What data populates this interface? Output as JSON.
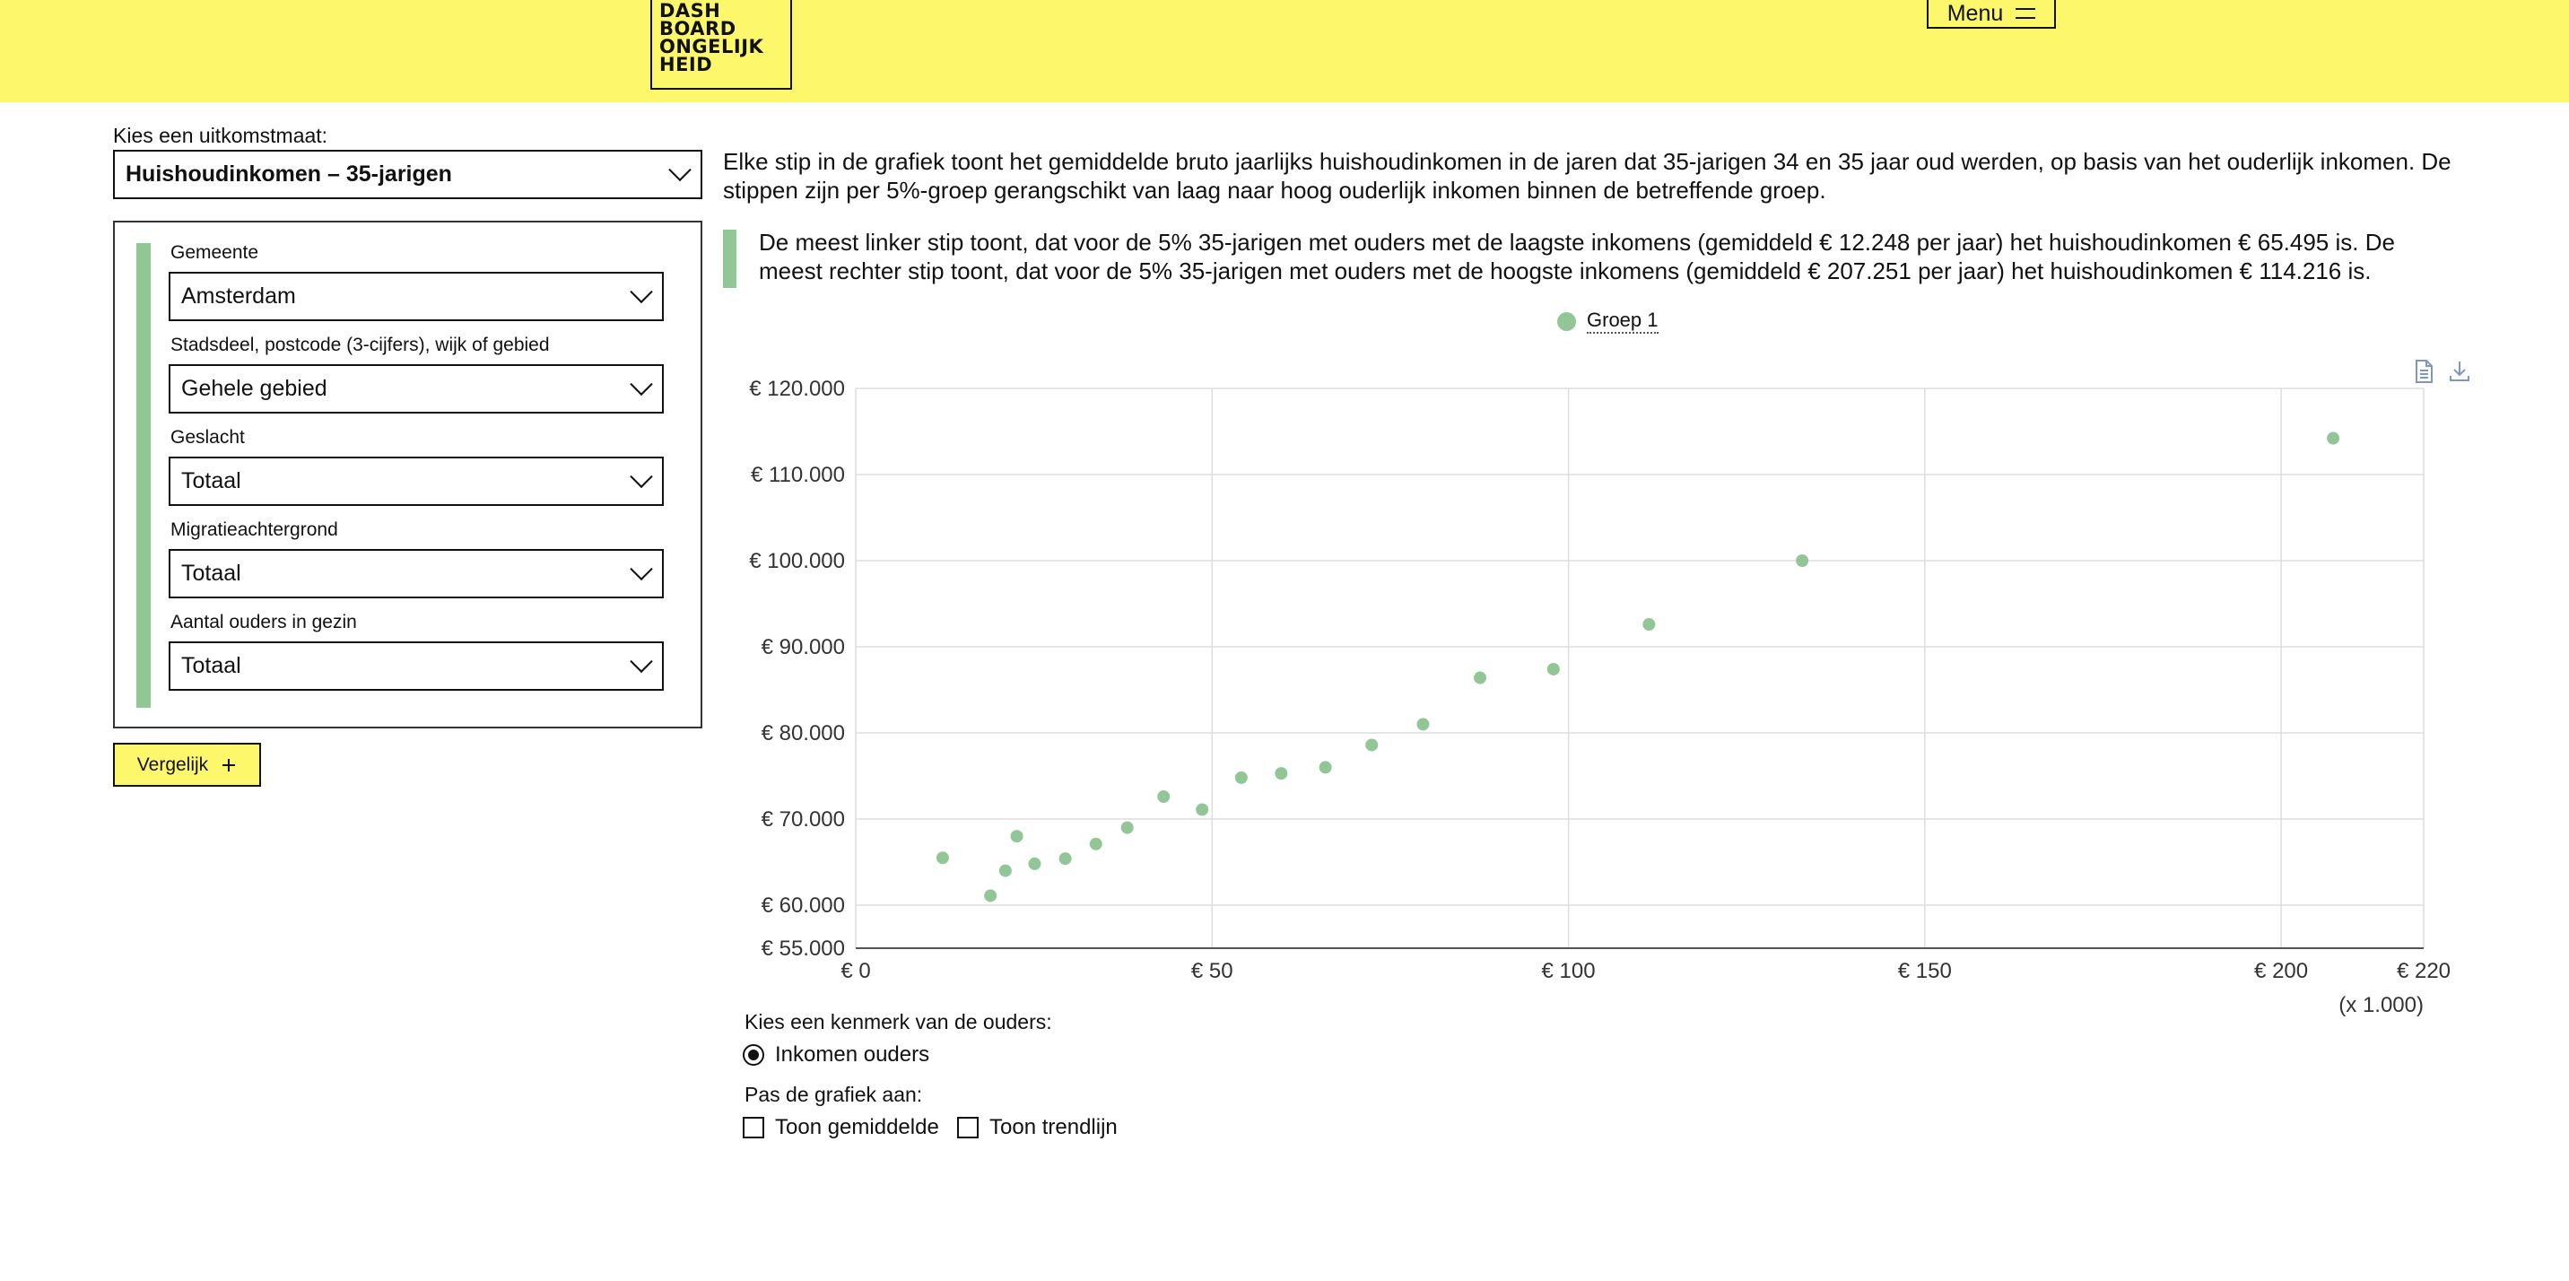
{
  "header": {
    "logo_lines": [
      "DASH",
      "BOARD",
      "ONGELIJK",
      "HEID"
    ],
    "menu_label": "Menu",
    "background": "#fdf86b"
  },
  "sidebar": {
    "measure_label": "Kies een uitkomstmaat:",
    "measure_value": "Huishoudinkomen – 35-jarigen",
    "filters": [
      {
        "label": "Gemeente",
        "value": "Amsterdam"
      },
      {
        "label": "Stadsdeel, postcode (3-cijfers), wijk of gebied",
        "value": "Gehele gebied"
      },
      {
        "label": "Geslacht",
        "value": "Totaal"
      },
      {
        "label": "Migratieachtergrond",
        "value": "Totaal"
      },
      {
        "label": "Aantal ouders in gezin",
        "value": "Totaal"
      }
    ],
    "compare_label": "Vergelijk",
    "compare_icon": "plus-icon"
  },
  "main": {
    "intro": "Elke stip in de grafiek toont het gemiddelde bruto jaarlijks huishoudinkomen in de jaren dat 35-jarigen 34 en 35 jaar oud werden, op basis van het ouderlijk inkomen. De stippen zijn per 5%-groep gerangschikt van laag naar hoog ouderlijk inkomen binnen de betreffende groep.",
    "callout": "De meest linker stip toont, dat voor de 5% 35-jarigen met ouders met de laagste inkomens (gemiddeld € 12.248 per jaar) het huishoudinkomen € 65.495 is. De meest rechter stip toont, dat voor de 5% 35-jarigen met ouders met de hoogste inkomens (gemiddeld € 207.251 per jaar) het huishoudinkomen € 114.216 is.",
    "tools": [
      "document-icon",
      "download-icon"
    ],
    "parent_feature_label": "Kies een kenmerk van de ouders:",
    "parent_feature_option": "Inkomen ouders",
    "adjust_label": "Pas de grafiek aan:",
    "options": [
      "Toon gemiddelde",
      "Toon trendlijn"
    ]
  },
  "chart_data": {
    "type": "scatter",
    "series": [
      {
        "name": "Groep 1",
        "color": "#93c697",
        "points": [
          [
            12.2,
            65495
          ],
          [
            18.9,
            61100
          ],
          [
            21.0,
            64000
          ],
          [
            22.6,
            68000
          ],
          [
            25.1,
            64800
          ],
          [
            29.4,
            65400
          ],
          [
            33.7,
            67100
          ],
          [
            38.1,
            69000
          ],
          [
            43.2,
            72600
          ],
          [
            48.6,
            71100
          ],
          [
            54.1,
            74800
          ],
          [
            59.7,
            75300
          ],
          [
            65.9,
            76000
          ],
          [
            72.4,
            78600
          ],
          [
            79.6,
            81000
          ],
          [
            87.6,
            86400
          ],
          [
            97.9,
            87400
          ],
          [
            111.3,
            92600
          ],
          [
            132.8,
            100000
          ],
          [
            207.3,
            114216
          ]
        ]
      }
    ],
    "x_ticks": [
      "€ 0",
      "€ 50",
      "€ 100",
      "€ 150",
      "€ 200",
      "€ 220"
    ],
    "x_tick_values": [
      0,
      50,
      100,
      150,
      200,
      220
    ],
    "x_unit": "(x 1.000)",
    "y_ticks": [
      "€ 55.000",
      "€ 60.000",
      "€ 70.000",
      "€ 80.000",
      "€ 90.000",
      "€ 100.000",
      "€ 110.000",
      "€ 120.000"
    ],
    "y_tick_values": [
      55000,
      60000,
      70000,
      80000,
      90000,
      100000,
      110000,
      120000
    ],
    "xlim": [
      0,
      220
    ],
    "ylim": [
      55000,
      120000
    ],
    "grid": true,
    "legend_position": "top-center"
  }
}
